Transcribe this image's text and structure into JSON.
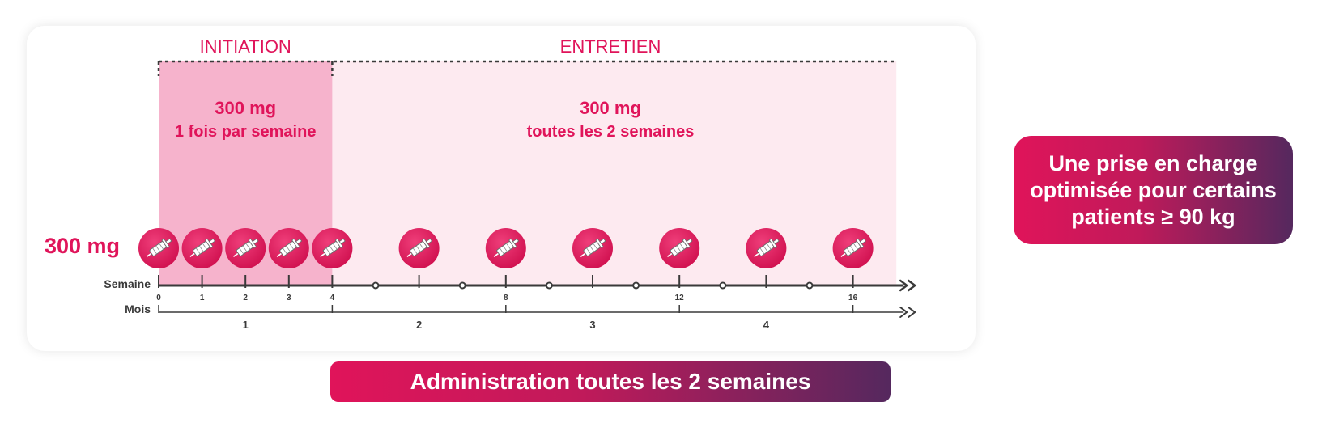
{
  "colors": {
    "accent": "#e0145a",
    "initiation_fill": "#f6b3cc",
    "maintenance_fill": "#fdeaf0",
    "axis": "#3a3a3a",
    "gradient_start": "#e0145a",
    "gradient_end": "#55285e"
  },
  "phases": {
    "initiation": {
      "label": "INITIATION",
      "dose": "300 mg",
      "frequency": "1 fois par semaine",
      "week_start": 0,
      "week_end": 4
    },
    "maintenance": {
      "label": "ENTRETIEN",
      "dose": "300 mg",
      "frequency": "toutes les 2 semaines",
      "week_start": 4,
      "week_end": 17
    }
  },
  "dose_row_label": "300 mg",
  "injection_weeks": [
    0,
    1,
    2,
    3,
    4,
    6,
    8,
    10,
    12,
    14,
    16
  ],
  "injection_icon": "syringe-icon",
  "week_axis": {
    "label": "Semaine",
    "tick_weeks": [
      0,
      1,
      2,
      3,
      4,
      6,
      8,
      10,
      12,
      14,
      16
    ],
    "tick_labels": [
      {
        "week": 0,
        "text": "0"
      },
      {
        "week": 1,
        "text": "1"
      },
      {
        "week": 2,
        "text": "2"
      },
      {
        "week": 3,
        "text": "3"
      },
      {
        "week": 4,
        "text": "4"
      },
      {
        "week": 8,
        "text": "8"
      },
      {
        "week": 12,
        "text": "12"
      },
      {
        "week": 16,
        "text": "16"
      }
    ],
    "circle_weeks": [
      5,
      7,
      9,
      11,
      13,
      15
    ]
  },
  "month_axis": {
    "label": "Mois",
    "boundary_weeks": [
      0,
      4,
      8,
      12,
      16
    ],
    "months": [
      {
        "text": "1",
        "center_week": 2
      },
      {
        "text": "2",
        "center_week": 6
      },
      {
        "text": "3",
        "center_week": 10
      },
      {
        "text": "4",
        "center_week": 14
      }
    ]
  },
  "admin_banner": "Administration toutes les 2 semaines",
  "patient_box": [
    "Une prise en charge",
    "optimisée pour certains",
    "patients ≥ 90 kg"
  ]
}
